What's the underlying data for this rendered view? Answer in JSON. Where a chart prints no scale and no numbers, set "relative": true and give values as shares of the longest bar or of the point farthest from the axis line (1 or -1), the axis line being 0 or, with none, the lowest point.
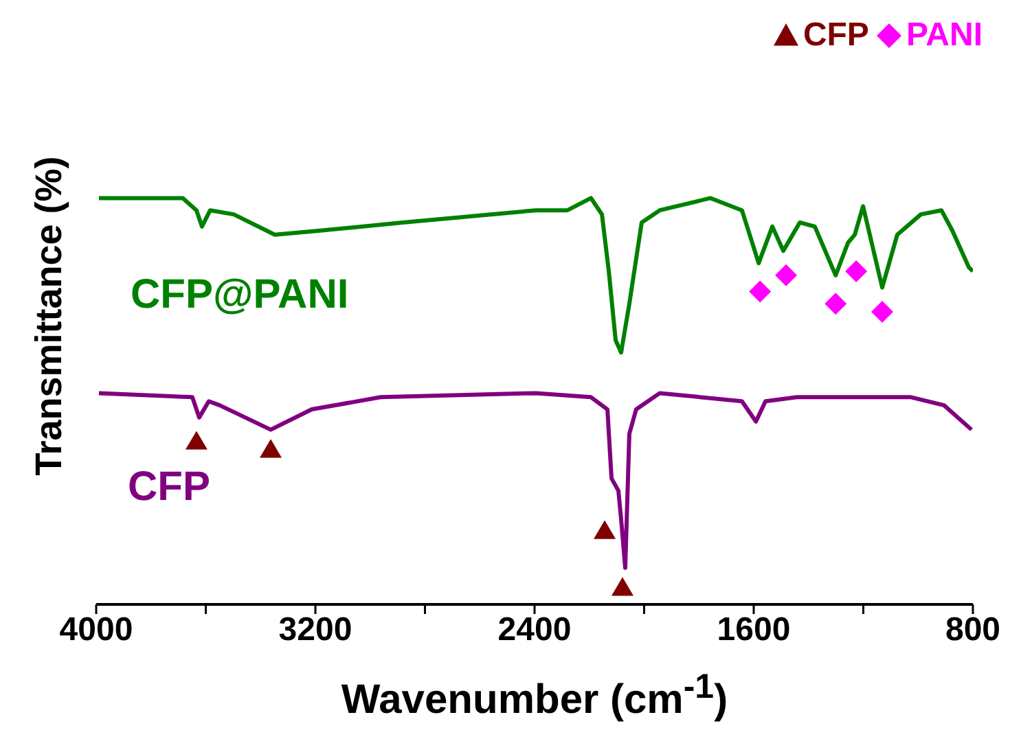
{
  "chart_data": {
    "type": "line",
    "relative": true,
    "xlabel": "Wavenumber (cm$^{-1}$)",
    "ylabel": "Transmittance (%)",
    "xlim": [
      4000,
      800
    ],
    "xticks": [
      4000,
      {
        "value": 3600,
        "label": null
      },
      3200,
      {
        "value": 2800,
        "label": null
      },
      2400,
      {
        "value": 2000,
        "label": null
      },
      1600,
      {
        "value": 1200,
        "label": null
      },
      800
    ],
    "legend": "top right",
    "grid": false,
    "line_style": "solid",
    "series": [
      {
        "name": "CFP@PANI",
        "color": "#008000",
        "marker": "none",
        "x": [
          3990,
          3684,
          3634,
          3614,
          3584,
          3498,
          3348,
          3182,
          2881,
          2395,
          2280,
          2194,
          2154,
          2129,
          2104,
          2084,
          2054,
          2009,
          1943,
          1758,
          1643,
          1582,
          1532,
          1492,
          1432,
          1377,
          1301,
          1256,
          1231,
          1201,
          1131,
          1076,
          990,
          915,
          875,
          815,
          800
        ],
        "values": [
          1,
          1,
          0.97,
          0.93,
          0.97,
          0.96,
          0.91,
          0.92,
          0.94,
          0.97,
          0.97,
          1,
          0.96,
          0.82,
          0.65,
          0.62,
          0.74,
          0.94,
          0.97,
          1,
          0.97,
          0.84,
          0.93,
          0.87,
          0.94,
          0.93,
          0.81,
          0.89,
          0.91,
          0.98,
          0.78,
          0.91,
          0.96,
          0.97,
          0.92,
          0.83,
          0.82
        ]
      },
      {
        "name": "CFP",
        "color": "#800080",
        "marker": "none",
        "x": [
          3990,
          3649,
          3624,
          3589,
          3549,
          3363,
          3213,
          2962,
          2395,
          2194,
          2134,
          2119,
          2094,
          2084,
          2069,
          2054,
          2029,
          1943,
          1643,
          1592,
          1557,
          1442,
          1026,
          905,
          805
        ],
        "values": [
          0.52,
          0.51,
          0.46,
          0.5,
          0.49,
          0.43,
          0.48,
          0.51,
          0.52,
          0.51,
          0.48,
          0.31,
          0.28,
          0.21,
          0.09,
          0.42,
          0.48,
          0.52,
          0.5,
          0.45,
          0.5,
          0.51,
          0.51,
          0.49,
          0.43
        ]
      },
      {
        "name": "CFP",
        "type": "scatter",
        "color": "#800000",
        "marker": "triangle",
        "x": [
          3634,
          3363,
          2144,
          2079
        ],
        "values": [
          0.4,
          0.38,
          0.18,
          0.04
        ]
      },
      {
        "name": "PANI",
        "type": "scatter",
        "color": "#ff00ff",
        "marker": "diamond",
        "x": [
          1577,
          1482,
          1301,
          1226,
          1131
        ],
        "values": [
          0.77,
          0.81,
          0.74,
          0.82,
          0.72
        ]
      }
    ]
  }
}
